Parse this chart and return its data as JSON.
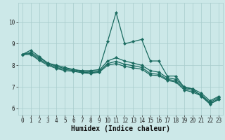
{
  "xlabel": "Humidex (Indice chaleur)",
  "xlim": [
    -0.5,
    23.5
  ],
  "ylim": [
    5.7,
    10.9
  ],
  "yticks": [
    6,
    7,
    8,
    9,
    10
  ],
  "xticks": [
    0,
    1,
    2,
    3,
    4,
    5,
    6,
    7,
    8,
    9,
    10,
    11,
    12,
    13,
    14,
    15,
    16,
    17,
    18,
    19,
    20,
    21,
    22,
    23
  ],
  "bg_color": "#cce8e8",
  "line_color": "#1a6b60",
  "grid_color": "#a8cccc",
  "lines": [
    [
      8.5,
      8.7,
      8.4,
      8.1,
      8.0,
      7.9,
      7.8,
      7.75,
      7.75,
      7.8,
      9.1,
      10.45,
      9.0,
      9.1,
      9.2,
      8.2,
      8.2,
      7.5,
      7.5,
      6.95,
      6.9,
      6.55,
      6.2,
      6.4
    ],
    [
      8.5,
      8.6,
      8.35,
      8.1,
      7.95,
      7.85,
      7.8,
      7.72,
      7.7,
      7.75,
      8.2,
      8.35,
      8.2,
      8.1,
      8.0,
      7.75,
      7.68,
      7.42,
      7.35,
      7.0,
      6.9,
      6.7,
      6.35,
      6.55
    ],
    [
      8.5,
      8.55,
      8.28,
      8.05,
      7.9,
      7.8,
      7.76,
      7.68,
      7.65,
      7.7,
      8.08,
      8.18,
      8.05,
      7.98,
      7.9,
      7.62,
      7.58,
      7.35,
      7.28,
      6.92,
      6.82,
      6.62,
      6.28,
      6.5
    ],
    [
      8.5,
      8.5,
      8.22,
      8.0,
      7.85,
      7.75,
      7.72,
      7.65,
      7.62,
      7.67,
      8.0,
      8.08,
      7.95,
      7.88,
      7.82,
      7.55,
      7.52,
      7.3,
      7.22,
      6.85,
      6.75,
      6.58,
      6.22,
      6.44
    ]
  ],
  "marker": "D",
  "markersize": 2.2,
  "linewidth": 0.9,
  "tick_fontsize": 5.5,
  "label_fontsize": 7.0,
  "tick_color": "#222222"
}
